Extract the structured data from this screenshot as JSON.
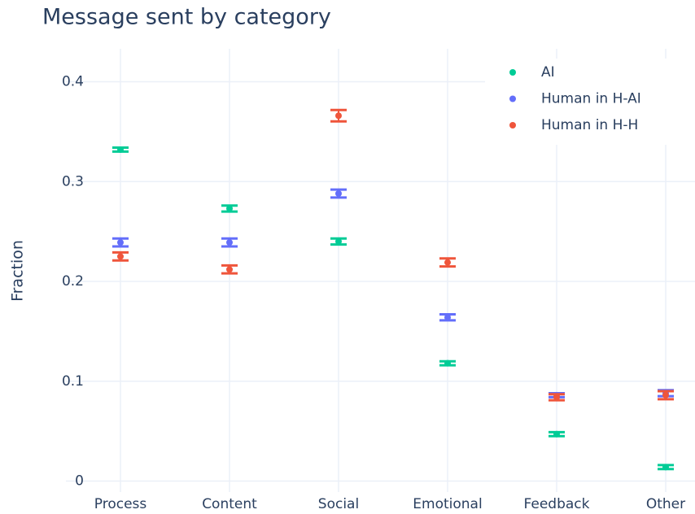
{
  "chart_data": {
    "type": "scatter",
    "title": "Message sent by category",
    "y_label": "Fraction",
    "categories": [
      "Process",
      "Content",
      "Social",
      "Emotional",
      "Feedback",
      "Other"
    ],
    "series": [
      {
        "name": "AI",
        "color": "#00cc96",
        "values": [
          0.332,
          0.273,
          0.24,
          0.118,
          0.047,
          0.014
        ],
        "errors": [
          0.002,
          0.003,
          0.003,
          0.002,
          0.002,
          0.002
        ]
      },
      {
        "name": "Human in H-AI",
        "color": "#636efa",
        "values": [
          0.239,
          0.239,
          0.288,
          0.164,
          0.086,
          0.088
        ],
        "errors": [
          0.004,
          0.004,
          0.004,
          0.003,
          0.002,
          0.003
        ]
      },
      {
        "name": "Human in H-H",
        "color": "#ef553b",
        "values": [
          0.225,
          0.212,
          0.366,
          0.219,
          0.084,
          0.086
        ],
        "errors": [
          0.004,
          0.004,
          0.0057,
          0.004,
          0.003,
          0.004
        ]
      }
    ],
    "ylim": [
      -0.011,
      0.433
    ],
    "yticks": [
      0,
      0.1,
      0.2,
      0.3,
      0.4
    ],
    "grid": true,
    "legend": "top-right"
  }
}
